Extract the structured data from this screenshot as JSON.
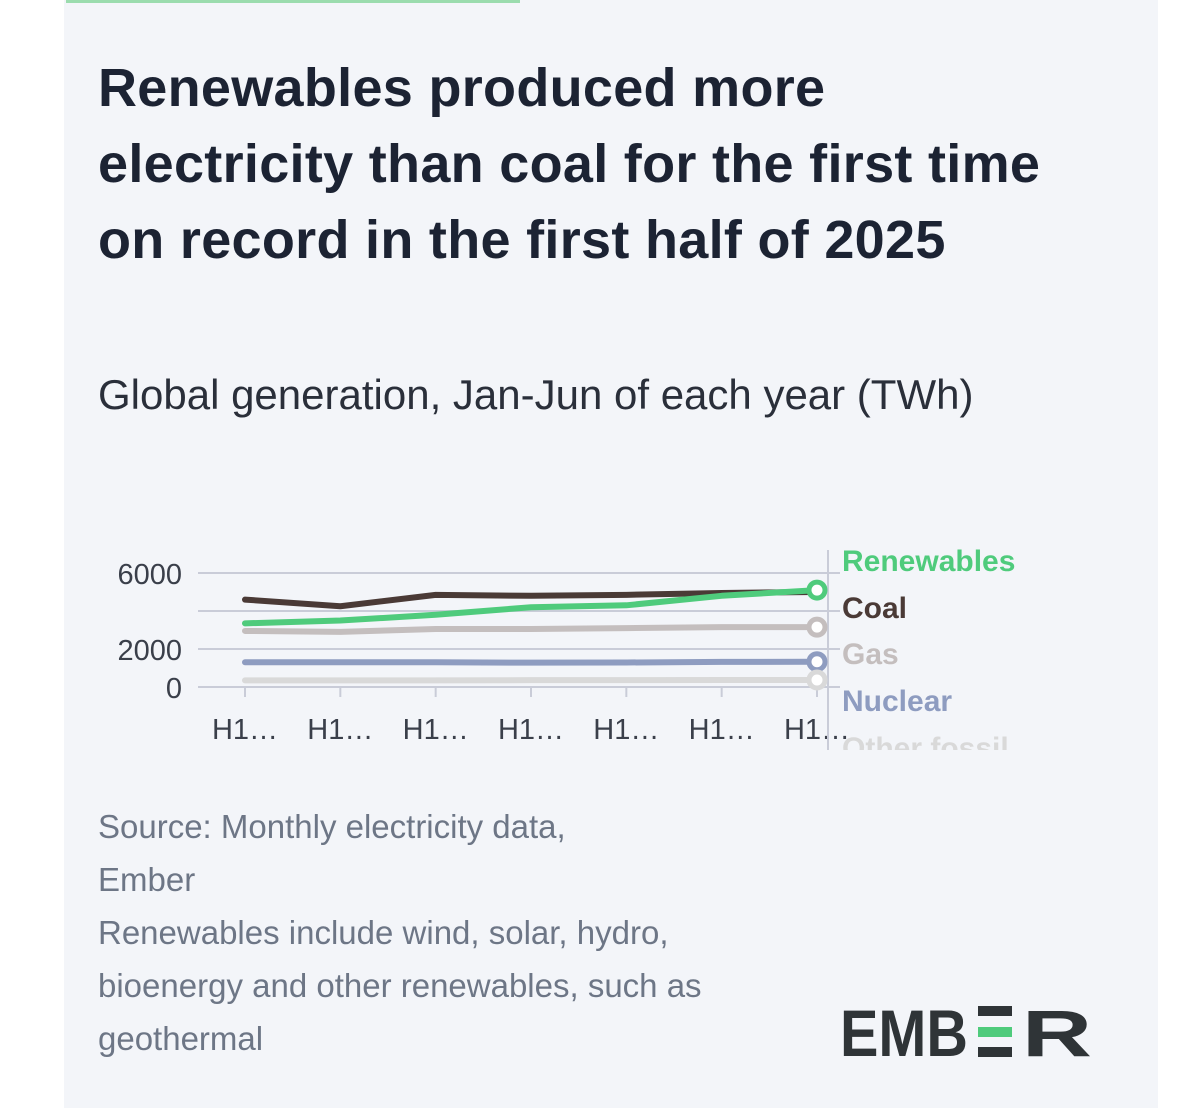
{
  "card": {
    "title": "Renewables produced more electricity than coal for the first time on record in the first half of 2025",
    "subtitle": "Global generation, Jan-Jun of each year (TWh)",
    "source_line1": "Source: Monthly electricity data,",
    "source_line2": "Ember",
    "note": "Renewables include wind, solar, hydro, bioenergy and other renewables, such as geothermal",
    "logo_text": "EMBER"
  },
  "colors": {
    "background": "#f3f5f9",
    "renewables": "#4fcb7c",
    "coal": "#4a3a36",
    "gas": "#c4bebe",
    "nuclear": "#8e9cc0",
    "other_fossil": "#d9d9d9",
    "gridline": "#c9ccd8",
    "logo_dark": "#2f3437",
    "logo_green": "#4fcb7c"
  },
  "chart_data": {
    "type": "line",
    "x": [
      "H1…",
      "H1…",
      "H1…",
      "H1…",
      "H1…",
      "H1…",
      "H1…"
    ],
    "y_ticks": [
      0,
      2000,
      6000
    ],
    "ylim": [
      0,
      6000
    ],
    "grid": true,
    "legend_placement": "right",
    "series": [
      {
        "name": "Renewables",
        "color_key": "renewables",
        "values": [
          3350,
          3500,
          3800,
          4200,
          4300,
          4800,
          5100
        ]
      },
      {
        "name": "Coal",
        "color_key": "coal",
        "values": [
          4600,
          4250,
          4850,
          4800,
          4850,
          4950,
          5000
        ]
      },
      {
        "name": "Gas",
        "color_key": "gas",
        "values": [
          2950,
          2900,
          3050,
          3050,
          3100,
          3150,
          3150
        ]
      },
      {
        "name": "Nuclear",
        "color_key": "nuclear",
        "values": [
          1300,
          1300,
          1300,
          1280,
          1290,
          1320,
          1330
        ]
      },
      {
        "name": "Other fossil",
        "color_key": "other_fossil",
        "values": [
          350,
          350,
          350,
          360,
          360,
          370,
          370
        ]
      }
    ]
  }
}
